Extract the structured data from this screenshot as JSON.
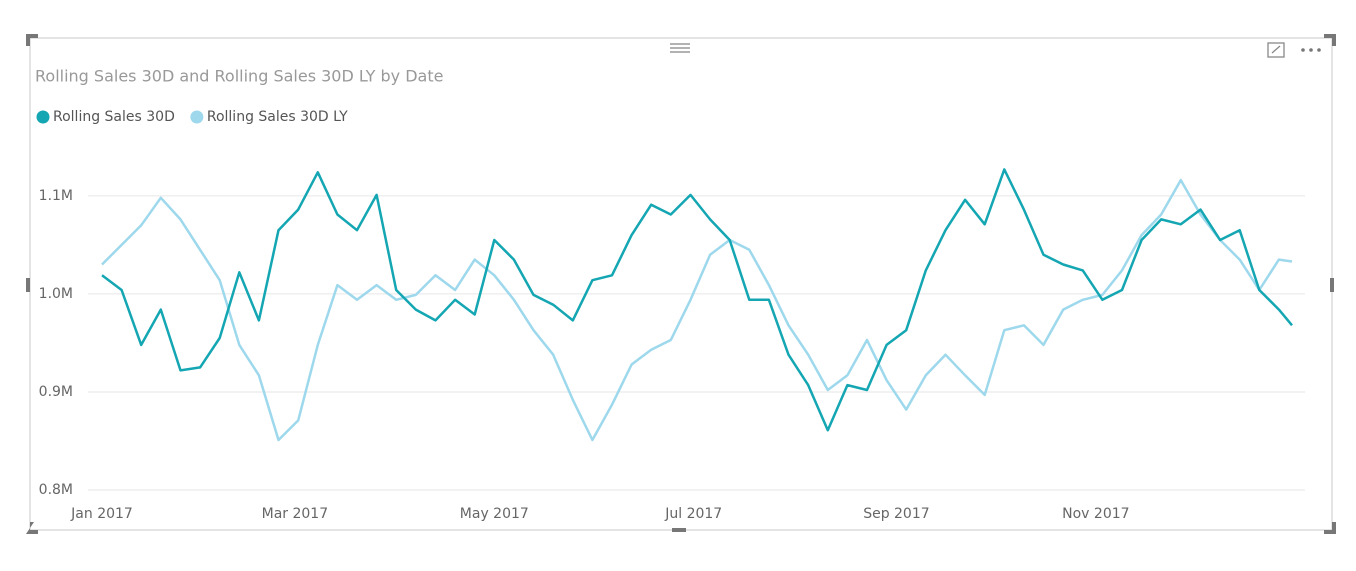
{
  "chart_data": {
    "type": "line",
    "title": "Rolling Sales 30D and Rolling Sales 30D LY by Date",
    "x": [
      0,
      6,
      12,
      18,
      24,
      30,
      36,
      42,
      48,
      54,
      60,
      66,
      72,
      78,
      84,
      90,
      96,
      102,
      108,
      114,
      120,
      126,
      132,
      138,
      144,
      150,
      156,
      162,
      168,
      174,
      180,
      186,
      192,
      198,
      204,
      210,
      216,
      222,
      228,
      234,
      240,
      246,
      252,
      258,
      264,
      270,
      276,
      282,
      288,
      294,
      300,
      306,
      312,
      318,
      324,
      330,
      336,
      342,
      348,
      354,
      360,
      364
    ],
    "xlim": [
      0,
      364
    ],
    "xticks": [
      {
        "value": 0,
        "label": "Jan 2017"
      },
      {
        "value": 59,
        "label": "Mar 2017"
      },
      {
        "value": 120,
        "label": "May 2017"
      },
      {
        "value": 181,
        "label": "Jul 2017"
      },
      {
        "value": 243,
        "label": "Sep 2017"
      },
      {
        "value": 304,
        "label": "Nov 2017"
      }
    ],
    "ylim": [
      800000,
      1160000
    ],
    "yticks": [
      {
        "value": 800000,
        "label": "0.8M"
      },
      {
        "value": 900000,
        "label": "0.9M"
      },
      {
        "value": 1000000,
        "label": "1.0M"
      },
      {
        "value": 1100000,
        "label": "1.1M"
      }
    ],
    "grid": true,
    "legend": "top-left",
    "series": [
      {
        "name": "Rolling Sales 30D",
        "color": "#14a6b2",
        "values": [
          1019000,
          1004000,
          948000,
          984000,
          922000,
          925000,
          955000,
          1022000,
          973000,
          1065000,
          1086000,
          1124000,
          1081000,
          1065000,
          1101000,
          1004000,
          984000,
          973000,
          994000,
          979000,
          1055000,
          1035000,
          999000,
          989000,
          973000,
          1014000,
          1019000,
          1060000,
          1091000,
          1081000,
          1101000,
          1076000,
          1055000,
          994000,
          994000,
          938000,
          907000,
          861000,
          907000,
          902000,
          948000,
          963000,
          1024000,
          1065000,
          1096000,
          1071000,
          1127000,
          1086000,
          1040000,
          1030000,
          1024000,
          994000,
          1004000,
          1055000,
          1076000,
          1071000,
          1086000,
          1055000,
          1065000,
          1004000,
          984000,
          968000
        ]
      },
      {
        "name": "Rolling Sales 30D LY",
        "color": "#9dd8ec",
        "values": [
          1030000,
          1050000,
          1070000,
          1098000,
          1076000,
          1045000,
          1014000,
          948000,
          917000,
          851000,
          871000,
          948000,
          1009000,
          994000,
          1009000,
          994000,
          999000,
          1019000,
          1004000,
          1035000,
          1019000,
          994000,
          963000,
          938000,
          892000,
          851000,
          887000,
          928000,
          943000,
          953000,
          994000,
          1040000,
          1055000,
          1045000,
          1009000,
          968000,
          938000,
          902000,
          917000,
          953000,
          912000,
          882000,
          917000,
          938000,
          917000,
          897000,
          963000,
          968000,
          948000,
          984000,
          994000,
          999000,
          1024000,
          1060000,
          1081000,
          1116000,
          1081000,
          1055000,
          1035000,
          1004000,
          1035000,
          1033000
        ]
      }
    ]
  }
}
